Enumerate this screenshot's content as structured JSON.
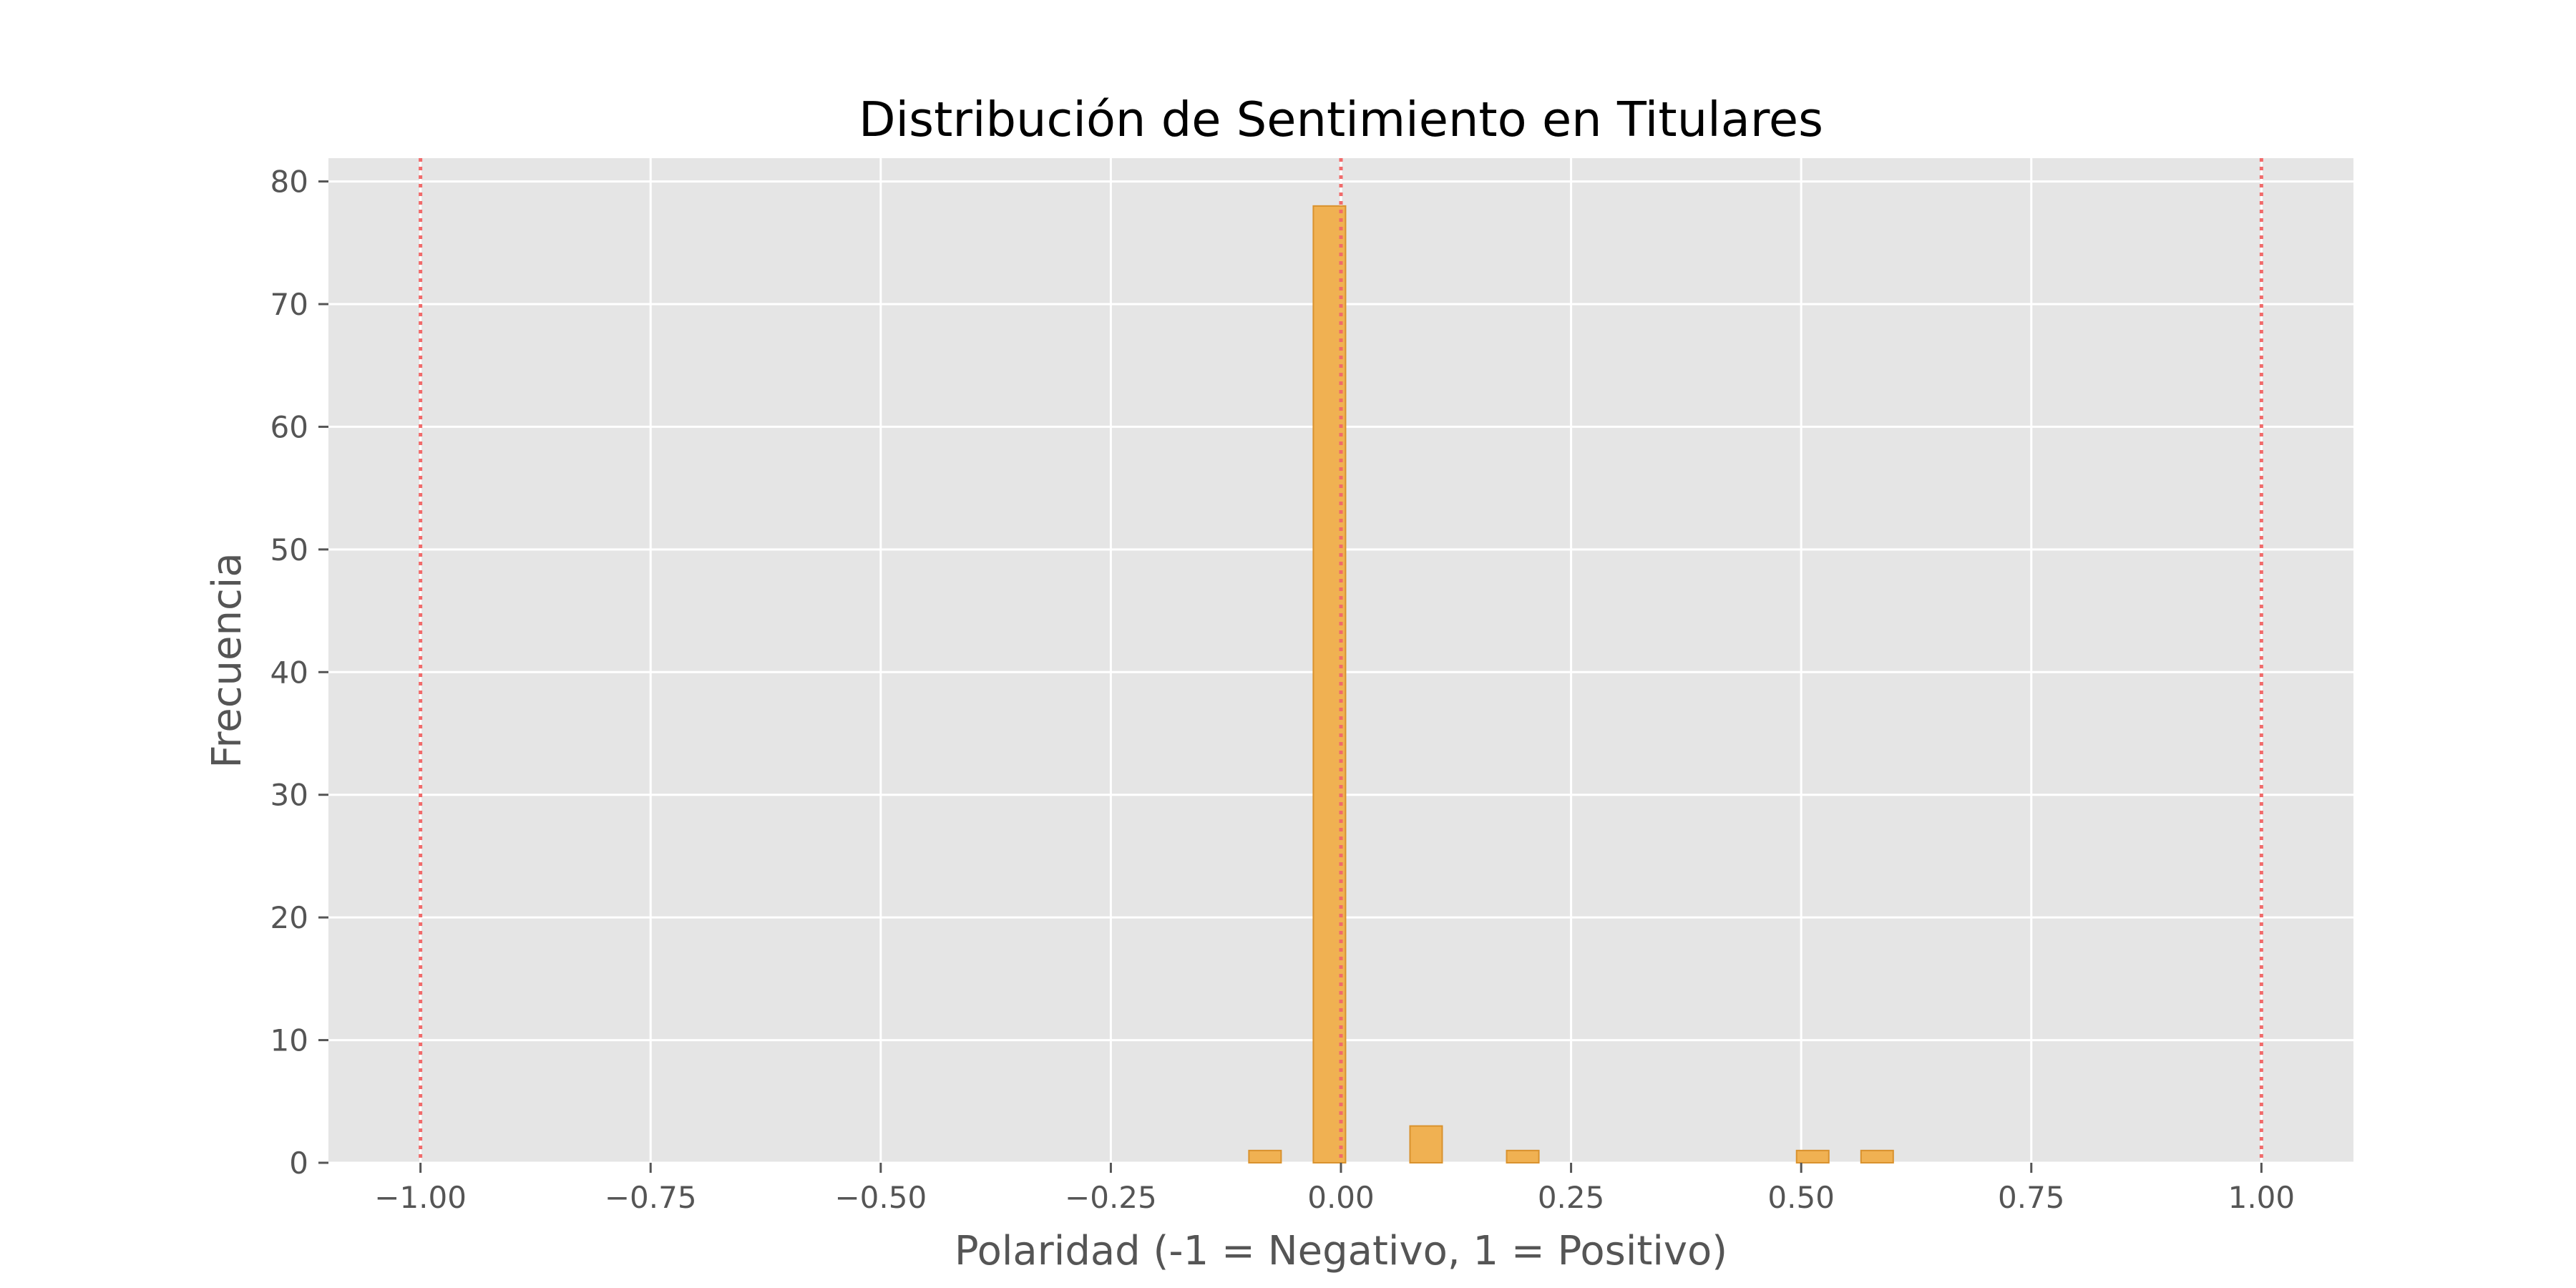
{
  "chart_data": {
    "type": "bar",
    "title": "Distribución de Sentimiento en Titulares",
    "xlabel": "Polaridad (-1 = Negativo, 1 = Positivo)",
    "ylabel": "Frecuencia",
    "xlim": [
      -1.1,
      1.1
    ],
    "ylim": [
      0,
      81.9
    ],
    "xticks": [
      -1.0,
      -0.75,
      -0.5,
      -0.25,
      0.0,
      0.25,
      0.5,
      0.75,
      1.0
    ],
    "xtick_labels": [
      "−1.00",
      "−0.75",
      "−0.50",
      "−0.25",
      "0.00",
      "0.25",
      "0.50",
      "0.75",
      "1.00"
    ],
    "yticks": [
      0,
      10,
      20,
      30,
      40,
      50,
      60,
      70,
      80
    ],
    "ytick_labels": [
      "0",
      "10",
      "20",
      "30",
      "40",
      "50",
      "60",
      "70",
      "80"
    ],
    "grid": true,
    "bin_width": 0.035,
    "bars": [
      {
        "x_start": -0.1,
        "value": 1
      },
      {
        "x_start": -0.03,
        "value": 78
      },
      {
        "x_start": 0.075,
        "value": 3
      },
      {
        "x_start": 0.18,
        "value": 1
      },
      {
        "x_start": 0.495,
        "value": 1
      },
      {
        "x_start": 0.565,
        "value": 1
      }
    ],
    "reference_lines": [
      -1.0,
      0.0,
      1.0
    ],
    "colors": {
      "bar_fill": "#f0b152",
      "bar_edge": "#d9922e",
      "reference_line": "#f16b6b",
      "plot_background": "#e5e5e5",
      "grid": "#ffffff"
    }
  }
}
